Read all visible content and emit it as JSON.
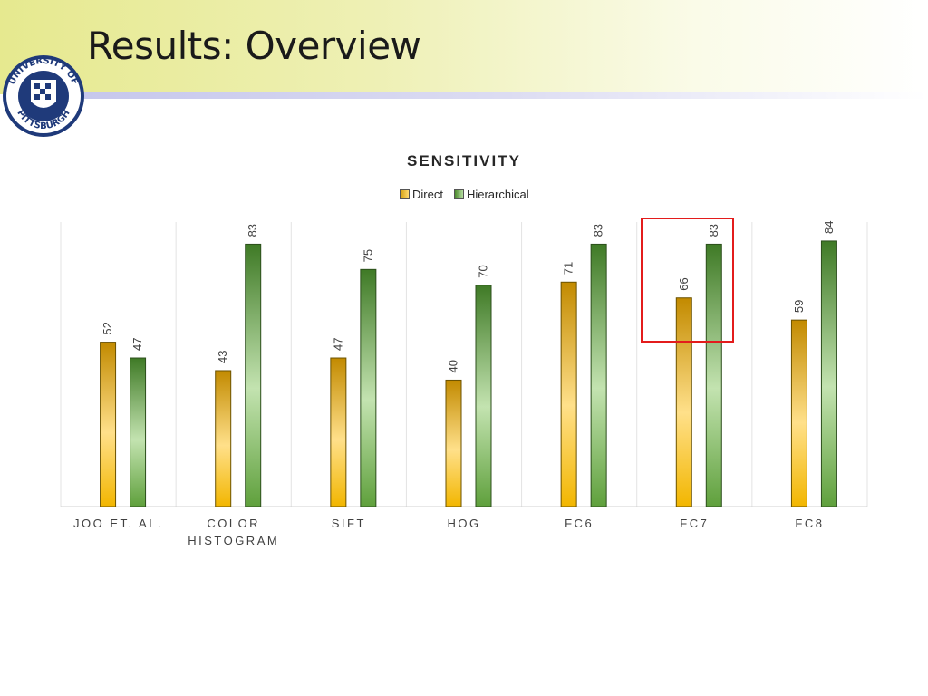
{
  "slide": {
    "title": "Results: Overview"
  },
  "logo": {
    "icon": "university-seal-icon",
    "text_top": "UNIVERSITY OF",
    "text_bottom": "PITTSBURGH"
  },
  "chart_data": {
    "type": "bar",
    "title": "SENSITIVITY",
    "categories": [
      "JOO ET. AL.",
      "COLOR HISTOGRAM",
      "SIFT",
      "HOG",
      "FC6",
      "FC7",
      "FC8"
    ],
    "series": [
      {
        "name": "Direct",
        "values": [
          52,
          43,
          47,
          40,
          71,
          66,
          59
        ],
        "color": "#e8b000"
      },
      {
        "name": "Hierarchical",
        "values": [
          47,
          83,
          75,
          70,
          83,
          83,
          84
        ],
        "color": "#5a9a3a"
      }
    ],
    "ylim": [
      0,
      90
    ],
    "grid": false,
    "legend_position": "top-center",
    "highlight_category": "FC7",
    "highlight_color": "#e31c1c"
  }
}
